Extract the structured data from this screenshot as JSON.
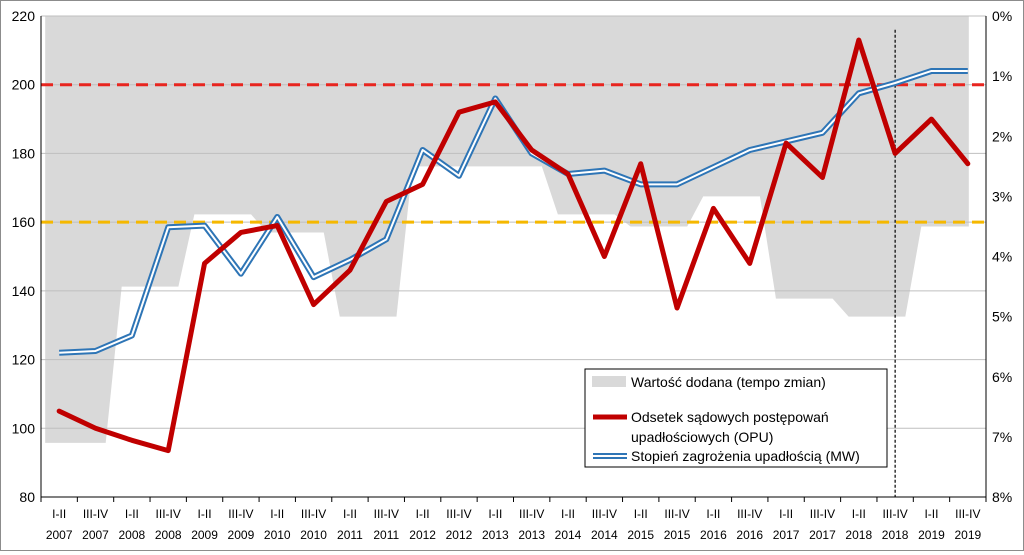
{
  "chart_data": {
    "type": "line",
    "title": "",
    "categories": [
      [
        "I-II",
        "2007"
      ],
      [
        "III-IV",
        "2007"
      ],
      [
        "I-II",
        "2008"
      ],
      [
        "III-IV",
        "2008"
      ],
      [
        "I-II",
        "2009"
      ],
      [
        "III-IV",
        "2009"
      ],
      [
        "I-II",
        "2010"
      ],
      [
        "III-IV",
        "2010"
      ],
      [
        "I-II",
        "2011"
      ],
      [
        "III-IV",
        "2011"
      ],
      [
        "I-II",
        "2012"
      ],
      [
        "III-IV",
        "2012"
      ],
      [
        "I-II",
        "2013"
      ],
      [
        "III-IV",
        "2013"
      ],
      [
        "I-II",
        "2014"
      ],
      [
        "III-IV",
        "2014"
      ],
      [
        "I-II",
        "2015"
      ],
      [
        "III-IV",
        "2015"
      ],
      [
        "I-II",
        "2016"
      ],
      [
        "III-IV",
        "2016"
      ],
      [
        "I-II",
        "2017"
      ],
      [
        "III-IV",
        "2017"
      ],
      [
        "I-II",
        "2018"
      ],
      [
        "III-IV",
        "2018"
      ],
      [
        "I-II",
        "2019"
      ],
      [
        "III-IV",
        "2019"
      ]
    ],
    "y_left": {
      "min": 80,
      "max": 220,
      "step": 20,
      "ticks": [
        "80",
        "100",
        "120",
        "140",
        "160",
        "180",
        "200",
        "220"
      ]
    },
    "y_right": {
      "min": 0,
      "max": 8,
      "inverted": true,
      "ticks": [
        "0%",
        "1%",
        "2%",
        "3%",
        "4%",
        "5%",
        "6%",
        "7%",
        "8%"
      ]
    },
    "grid": "horizontal",
    "reference_lines": [
      {
        "y": 200,
        "color": "#e8251f",
        "style": "dashed"
      },
      {
        "y": 160,
        "color": "#f5b800",
        "style": "dashed"
      }
    ],
    "vertical_marker": {
      "after_category_index": 23,
      "style": "dotted"
    },
    "series": [
      {
        "name": "Wartość dodana (tempo zmian)",
        "kind": "area",
        "axis": "right",
        "color": "#d9d9d9",
        "values": [
          7.1,
          7.1,
          4.5,
          4.5,
          3.3,
          3.3,
          3.6,
          3.6,
          5.0,
          5.0,
          2.5,
          2.5,
          2.5,
          2.5,
          3.3,
          3.3,
          3.5,
          3.5,
          3.0,
          3.0,
          4.7,
          4.7,
          5.0,
          5.0,
          3.5,
          3.5
        ]
      },
      {
        "name": "Odsetek sądowych postępowań upadłościowych (OPU)",
        "kind": "line",
        "axis": "left",
        "color": "#c00000",
        "values": [
          105,
          100,
          96.5,
          93.5,
          148,
          157,
          159,
          136,
          146,
          166,
          171,
          192,
          195,
          181,
          174,
          150,
          177,
          135,
          164,
          148,
          183,
          173,
          213,
          180,
          190,
          177
        ]
      },
      {
        "name": "Stopień zagrożenia upadłością (MW)",
        "kind": "double-line",
        "axis": "left",
        "color": "#2e75b6",
        "values": [
          122,
          122.5,
          127,
          158.5,
          159,
          145,
          161.5,
          144,
          149,
          155,
          181,
          173.5,
          196,
          180,
          174,
          175,
          171,
          171,
          176,
          181,
          183.5,
          186,
          197.5,
          200.5,
          204,
          204
        ]
      }
    ],
    "legend": {
      "position": "bottom-right",
      "entries": [
        "Wartość dodana (tempo zmian)",
        "Odsetek sądowych postępowań",
        "upadłościowych (OPU)",
        "Stopień zagrożenia upadłością (MW)"
      ]
    }
  }
}
